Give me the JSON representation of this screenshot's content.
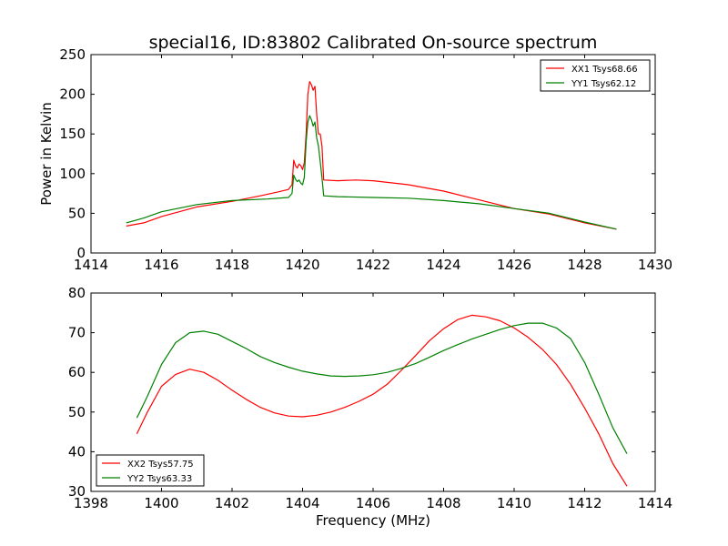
{
  "figure": {
    "title": "special16, ID:83802 Calibrated On-source spectrum",
    "ylabel": "Power in Kelvin",
    "xlabel": "Frequency (MHz)"
  },
  "chart_data": [
    {
      "type": "line",
      "title": "special16, ID:83802 Calibrated On-source spectrum",
      "xlabel": "",
      "ylabel": "Power in Kelvin",
      "xlim": [
        1414,
        1430
      ],
      "ylim": [
        0,
        250
      ],
      "xticks": [
        1414,
        1416,
        1418,
        1420,
        1422,
        1424,
        1426,
        1428,
        1430
      ],
      "yticks": [
        0,
        50,
        100,
        150,
        200,
        250
      ],
      "legend_position": "top-right",
      "grid": false,
      "series": [
        {
          "name": "XX1 Tsys68.66",
          "color": "#ff0000",
          "points": [
            [
              1415.0,
              34
            ],
            [
              1415.5,
              38
            ],
            [
              1416.0,
              46
            ],
            [
              1417.0,
              58
            ],
            [
              1418.0,
              65
            ],
            [
              1418.8,
              72
            ],
            [
              1419.3,
              77
            ],
            [
              1419.6,
              80
            ],
            [
              1419.7,
              86
            ],
            [
              1419.75,
              117
            ],
            [
              1419.8,
              110
            ],
            [
              1419.85,
              107
            ],
            [
              1419.9,
              112
            ],
            [
              1419.95,
              110
            ],
            [
              1420.0,
              105
            ],
            [
              1420.05,
              114
            ],
            [
              1420.1,
              150
            ],
            [
              1420.15,
              200
            ],
            [
              1420.2,
              216
            ],
            [
              1420.25,
              212
            ],
            [
              1420.3,
              205
            ],
            [
              1420.35,
              210
            ],
            [
              1420.4,
              175
            ],
            [
              1420.45,
              150
            ],
            [
              1420.5,
              150
            ],
            [
              1420.55,
              135
            ],
            [
              1420.6,
              92
            ],
            [
              1421.0,
              91
            ],
            [
              1421.5,
              92
            ],
            [
              1422.0,
              91
            ],
            [
              1423.0,
              86
            ],
            [
              1424.0,
              78
            ],
            [
              1425.0,
              67
            ],
            [
              1426.0,
              56
            ],
            [
              1427.0,
              49
            ],
            [
              1428.0,
              38
            ],
            [
              1428.9,
              30
            ]
          ]
        },
        {
          "name": "YY1 Tsys62.12",
          "color": "#008000",
          "points": [
            [
              1415.0,
              38
            ],
            [
              1415.5,
              44
            ],
            [
              1416.0,
              52
            ],
            [
              1417.0,
              61
            ],
            [
              1418.0,
              66
            ],
            [
              1419.0,
              68
            ],
            [
              1419.6,
              70
            ],
            [
              1419.7,
              75
            ],
            [
              1419.75,
              98
            ],
            [
              1419.8,
              93
            ],
            [
              1419.85,
              90
            ],
            [
              1419.9,
              92
            ],
            [
              1419.95,
              88
            ],
            [
              1420.0,
              86
            ],
            [
              1420.05,
              95
            ],
            [
              1420.1,
              140
            ],
            [
              1420.15,
              165
            ],
            [
              1420.2,
              173
            ],
            [
              1420.25,
              168
            ],
            [
              1420.3,
              160
            ],
            [
              1420.35,
              165
            ],
            [
              1420.4,
              145
            ],
            [
              1420.45,
              135
            ],
            [
              1420.5,
              115
            ],
            [
              1420.55,
              95
            ],
            [
              1420.6,
              72
            ],
            [
              1421.0,
              71
            ],
            [
              1422.0,
              70
            ],
            [
              1423.0,
              69
            ],
            [
              1424.0,
              66
            ],
            [
              1425.0,
              62
            ],
            [
              1426.0,
              56
            ],
            [
              1427.0,
              50
            ],
            [
              1428.0,
              39
            ],
            [
              1428.9,
              30
            ]
          ]
        }
      ]
    },
    {
      "type": "line",
      "title": "",
      "xlabel": "Frequency (MHz)",
      "ylabel": "",
      "xlim": [
        1398,
        1414
      ],
      "ylim": [
        30,
        80
      ],
      "xticks": [
        1398,
        1400,
        1402,
        1404,
        1406,
        1408,
        1410,
        1412,
        1414
      ],
      "yticks": [
        30,
        40,
        50,
        60,
        70,
        80
      ],
      "legend_position": "bottom-left",
      "grid": false,
      "series": [
        {
          "name": "XX2 Tsys57.75",
          "color": "#ff0000",
          "points": [
            [
              1399.3,
              44.5
            ],
            [
              1399.6,
              50
            ],
            [
              1400.0,
              56.5
            ],
            [
              1400.4,
              59.5
            ],
            [
              1400.8,
              60.8
            ],
            [
              1401.2,
              60
            ],
            [
              1401.6,
              58
            ],
            [
              1402.0,
              55.5
            ],
            [
              1402.4,
              53.2
            ],
            [
              1402.8,
              51.2
            ],
            [
              1403.2,
              49.8
            ],
            [
              1403.6,
              49.0
            ],
            [
              1404.0,
              48.8
            ],
            [
              1404.4,
              49.2
            ],
            [
              1404.8,
              50.0
            ],
            [
              1405.2,
              51.2
            ],
            [
              1405.6,
              52.7
            ],
            [
              1406.0,
              54.5
            ],
            [
              1406.4,
              57.0
            ],
            [
              1406.8,
              60.5
            ],
            [
              1407.2,
              64.2
            ],
            [
              1407.6,
              68.0
            ],
            [
              1408.0,
              71.0
            ],
            [
              1408.4,
              73.3
            ],
            [
              1408.8,
              74.4
            ],
            [
              1409.2,
              74.0
            ],
            [
              1409.6,
              73.0
            ],
            [
              1410.0,
              71.2
            ],
            [
              1410.4,
              68.8
            ],
            [
              1410.8,
              65.8
            ],
            [
              1411.2,
              62.0
            ],
            [
              1411.6,
              57.0
            ],
            [
              1412.0,
              51.0
            ],
            [
              1412.4,
              44.5
            ],
            [
              1412.8,
              37.0
            ],
            [
              1413.2,
              31.3
            ]
          ]
        },
        {
          "name": "YY2 Tsys63.33",
          "color": "#008000",
          "points": [
            [
              1399.3,
              48.5
            ],
            [
              1399.6,
              54
            ],
            [
              1400.0,
              62
            ],
            [
              1400.4,
              67.5
            ],
            [
              1400.8,
              70.0
            ],
            [
              1401.2,
              70.4
            ],
            [
              1401.6,
              69.6
            ],
            [
              1402.0,
              67.8
            ],
            [
              1402.4,
              66.0
            ],
            [
              1402.8,
              64.0
            ],
            [
              1403.2,
              62.5
            ],
            [
              1403.6,
              61.3
            ],
            [
              1404.0,
              60.3
            ],
            [
              1404.4,
              59.6
            ],
            [
              1404.8,
              59.1
            ],
            [
              1405.2,
              59.0
            ],
            [
              1405.6,
              59.1
            ],
            [
              1406.0,
              59.4
            ],
            [
              1406.4,
              60.0
            ],
            [
              1406.8,
              61.0
            ],
            [
              1407.2,
              62.2
            ],
            [
              1407.6,
              63.8
            ],
            [
              1408.0,
              65.5
            ],
            [
              1408.4,
              67.0
            ],
            [
              1408.8,
              68.4
            ],
            [
              1409.2,
              69.6
            ],
            [
              1409.6,
              70.8
            ],
            [
              1410.0,
              71.8
            ],
            [
              1410.4,
              72.4
            ],
            [
              1410.8,
              72.4
            ],
            [
              1411.2,
              71.2
            ],
            [
              1411.6,
              68.5
            ],
            [
              1412.0,
              62.5
            ],
            [
              1412.4,
              54.5
            ],
            [
              1412.8,
              46.0
            ],
            [
              1413.2,
              39.5
            ]
          ]
        }
      ]
    }
  ]
}
